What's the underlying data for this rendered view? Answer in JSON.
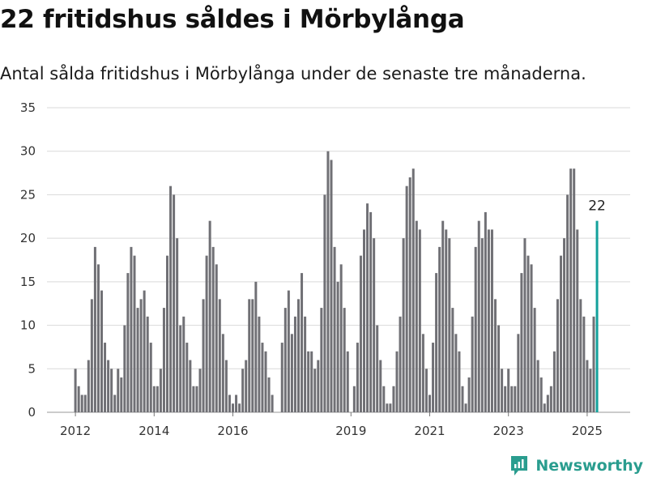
{
  "title": "22 fritidshus såldes i Mörbylånga",
  "subtitle": "Antal sålda fritidshus i Mörbylånga under de senaste tre månaderna.",
  "brand": {
    "name": "Newsworthy",
    "icon": "newsworthy-logo-icon",
    "color": "#2a9d8f"
  },
  "colors": {
    "bar": "#707075",
    "highlight": "#13a19b",
    "grid": "#d9d9d9"
  },
  "chart_data": {
    "type": "bar",
    "title": "22 fritidshus såldes i Mörbylånga",
    "xlabel": "",
    "ylabel": "",
    "ylim": [
      0,
      35
    ],
    "yticks": [
      0,
      5,
      10,
      15,
      20,
      25,
      30,
      35
    ],
    "xtick_labels": [
      "2012",
      "2014",
      "2016",
      "2019",
      "2021",
      "2023",
      "2025"
    ],
    "grid": true,
    "highlight_label": "22",
    "x": [
      "2012-01",
      "2012-02",
      "2012-03",
      "2012-04",
      "2012-05",
      "2012-06",
      "2012-07",
      "2012-08",
      "2012-09",
      "2012-10",
      "2012-11",
      "2012-12",
      "2013-01",
      "2013-02",
      "2013-03",
      "2013-04",
      "2013-05",
      "2013-06",
      "2013-07",
      "2013-08",
      "2013-09",
      "2013-10",
      "2013-11",
      "2013-12",
      "2014-01",
      "2014-02",
      "2014-03",
      "2014-04",
      "2014-05",
      "2014-06",
      "2014-07",
      "2014-08",
      "2014-09",
      "2014-10",
      "2014-11",
      "2014-12",
      "2015-01",
      "2015-02",
      "2015-03",
      "2015-04",
      "2015-05",
      "2015-06",
      "2015-07",
      "2015-08",
      "2015-09",
      "2015-10",
      "2015-11",
      "2015-12",
      "2016-01",
      "2016-02",
      "2016-03",
      "2016-04",
      "2016-05",
      "2016-06",
      "2016-07",
      "2016-08",
      "2016-09",
      "2016-10",
      "2016-11",
      "2016-12",
      "2017-01",
      "2017-02",
      "2017-03",
      "2017-04",
      "2017-05",
      "2017-06",
      "2017-07",
      "2017-08",
      "2017-09",
      "2017-10",
      "2017-11",
      "2017-12",
      "2018-01",
      "2018-02",
      "2018-03",
      "2018-04",
      "2018-05",
      "2018-06",
      "2018-07",
      "2018-08",
      "2018-09",
      "2018-10",
      "2018-11",
      "2018-12",
      "2019-01",
      "2019-02",
      "2019-03",
      "2019-04",
      "2019-05",
      "2019-06",
      "2019-07",
      "2019-08",
      "2019-09",
      "2019-10",
      "2019-11",
      "2019-12",
      "2020-01",
      "2020-02",
      "2020-03",
      "2020-04",
      "2020-05",
      "2020-06",
      "2020-07",
      "2020-08",
      "2020-09",
      "2020-10",
      "2020-11",
      "2020-12",
      "2021-01",
      "2021-02",
      "2021-03",
      "2021-04",
      "2021-05",
      "2021-06",
      "2021-07",
      "2021-08",
      "2021-09",
      "2021-10",
      "2021-11",
      "2021-12",
      "2022-01",
      "2022-02",
      "2022-03",
      "2022-04",
      "2022-05",
      "2022-06",
      "2022-07",
      "2022-08",
      "2022-09",
      "2022-10",
      "2022-11",
      "2022-12",
      "2023-01",
      "2023-02",
      "2023-03",
      "2023-04",
      "2023-05",
      "2023-06",
      "2023-07",
      "2023-08",
      "2023-09",
      "2023-10",
      "2023-11",
      "2023-12",
      "2024-01",
      "2024-02",
      "2024-03",
      "2024-04",
      "2024-05",
      "2024-06",
      "2024-07",
      "2024-08",
      "2024-09",
      "2024-10",
      "2024-11",
      "2024-12",
      "2025-01",
      "2025-02",
      "2025-03",
      "2025-04"
    ],
    "values": [
      5,
      3,
      2,
      2,
      6,
      13,
      19,
      17,
      14,
      8,
      6,
      5,
      2,
      5,
      4,
      10,
      16,
      19,
      18,
      12,
      13,
      14,
      11,
      8,
      3,
      3,
      5,
      12,
      18,
      26,
      25,
      20,
      10,
      11,
      8,
      6,
      3,
      3,
      5,
      13,
      18,
      22,
      19,
      17,
      13,
      9,
      6,
      2,
      1,
      2,
      1,
      5,
      6,
      13,
      13,
      15,
      11,
      8,
      7,
      4,
      2,
      null,
      null,
      8,
      12,
      14,
      9,
      11,
      13,
      16,
      11,
      7,
      7,
      5,
      6,
      12,
      25,
      30,
      29,
      19,
      15,
      17,
      12,
      7,
      null,
      3,
      8,
      18,
      21,
      24,
      23,
      20,
      10,
      6,
      3,
      1,
      1,
      3,
      7,
      11,
      20,
      26,
      27,
      28,
      22,
      21,
      9,
      5,
      2,
      8,
      16,
      19,
      22,
      21,
      20,
      12,
      9,
      7,
      3,
      1,
      4,
      11,
      19,
      22,
      20,
      23,
      21,
      21,
      13,
      10,
      5,
      3,
      5,
      3,
      3,
      9,
      16,
      20,
      18,
      17,
      12,
      6,
      4,
      1,
      2,
      3,
      7,
      13,
      18,
      20,
      25,
      28,
      28,
      21,
      13,
      11,
      6,
      5,
      11,
      22
    ],
    "highlight_index": 159
  }
}
